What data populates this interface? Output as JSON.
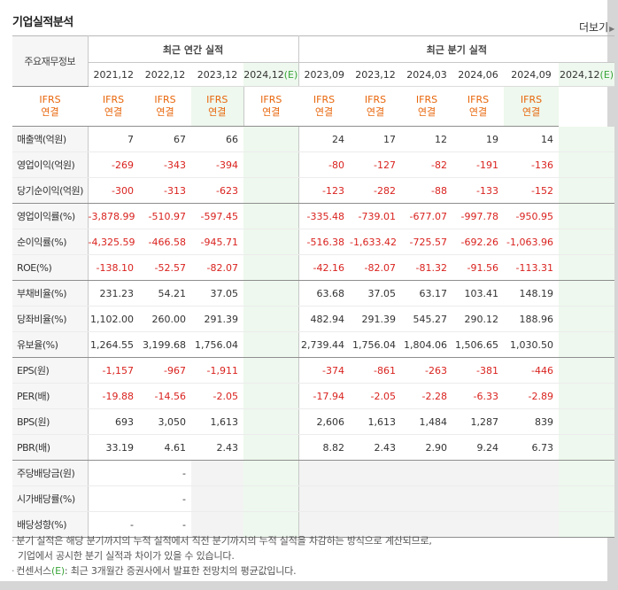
{
  "section_title": "기업실적분석",
  "more_label": "더보기",
  "header": {
    "row_label": "주요재무정보",
    "annual_group": "최근 연간 실적",
    "quarterly_group": "최근 분기 실적",
    "annual_periods": [
      "2021,12",
      "2022,12",
      "2023,12",
      "2024,12"
    ],
    "quarterly_periods": [
      "2023,09",
      "2023,12",
      "2024,03",
      "2024,06",
      "2024,09",
      "2024,12"
    ],
    "estimate_mark": "(E)",
    "basis_top": "IFRS",
    "basis_bottom": "연결"
  },
  "rows": [
    {
      "label": "매출액(억원)",
      "annual": [
        "7",
        "67",
        "66",
        ""
      ],
      "quarterly": [
        "24",
        "17",
        "12",
        "19",
        "14",
        ""
      ]
    },
    {
      "label": "영업이익(억원)",
      "annual": [
        "-269",
        "-343",
        "-394",
        ""
      ],
      "quarterly": [
        "-80",
        "-127",
        "-82",
        "-191",
        "-136",
        ""
      ]
    },
    {
      "label": "당기순이익(억원)",
      "annual": [
        "-300",
        "-313",
        "-623",
        ""
      ],
      "quarterly": [
        "-123",
        "-282",
        "-88",
        "-133",
        "-152",
        ""
      ]
    },
    {
      "label": "영업이익률(%)",
      "annual": [
        "-3,878.99",
        "-510.97",
        "-597.45",
        ""
      ],
      "quarterly": [
        "-335.48",
        "-739.01",
        "-677.07",
        "-997.78",
        "-950.95",
        ""
      ]
    },
    {
      "label": "순이익률(%)",
      "annual": [
        "-4,325.59",
        "-466.58",
        "-945.71",
        ""
      ],
      "quarterly": [
        "-516.38",
        "-1,633.42",
        "-725.57",
        "-692.26",
        "-1,063.96",
        ""
      ]
    },
    {
      "label": "ROE(%)",
      "annual": [
        "-138.10",
        "-52.57",
        "-82.07",
        ""
      ],
      "quarterly": [
        "-42.16",
        "-82.07",
        "-81.32",
        "-91.56",
        "-113.31",
        ""
      ]
    },
    {
      "label": "부채비율(%)",
      "annual": [
        "231.23",
        "54.21",
        "37.05",
        ""
      ],
      "quarterly": [
        "63.68",
        "37.05",
        "63.17",
        "103.41",
        "148.19",
        ""
      ]
    },
    {
      "label": "당좌비율(%)",
      "annual": [
        "1,102.00",
        "260.00",
        "291.39",
        ""
      ],
      "quarterly": [
        "482.94",
        "291.39",
        "545.27",
        "290.12",
        "188.96",
        ""
      ]
    },
    {
      "label": "유보율(%)",
      "annual": [
        "1,264.55",
        "3,199.68",
        "1,756.04",
        ""
      ],
      "quarterly": [
        "2,739.44",
        "1,756.04",
        "1,804.06",
        "1,506.65",
        "1,030.50",
        ""
      ]
    },
    {
      "label": "EPS(원)",
      "annual": [
        "-1,157",
        "-967",
        "-1,911",
        ""
      ],
      "quarterly": [
        "-374",
        "-861",
        "-263",
        "-381",
        "-446",
        ""
      ]
    },
    {
      "label": "PER(배)",
      "annual": [
        "-19.88",
        "-14.56",
        "-2.05",
        ""
      ],
      "quarterly": [
        "-17.94",
        "-2.05",
        "-2.28",
        "-6.33",
        "-2.89",
        ""
      ]
    },
    {
      "label": "BPS(원)",
      "annual": [
        "693",
        "3,050",
        "1,613",
        ""
      ],
      "quarterly": [
        "2,606",
        "1,613",
        "1,484",
        "1,287",
        "839",
        ""
      ]
    },
    {
      "label": "PBR(배)",
      "annual": [
        "33.19",
        "4.61",
        "2.43",
        ""
      ],
      "quarterly": [
        "8.82",
        "2.43",
        "2.90",
        "9.24",
        "6.73",
        ""
      ]
    },
    {
      "label": "주당배당금(원)",
      "annual": [
        "",
        "-",
        "",
        ""
      ],
      "quarterly": [
        "",
        "",
        "",
        "",
        "",
        ""
      ]
    },
    {
      "label": "시가배당률(%)",
      "annual": [
        "",
        "-",
        "",
        ""
      ],
      "quarterly": [
        "",
        "",
        "",
        "",
        "",
        ""
      ]
    },
    {
      "label": "배당성향(%)",
      "annual": [
        "-",
        "-",
        "",
        ""
      ],
      "quarterly": [
        "",
        "",
        "",
        "",
        "",
        ""
      ]
    }
  ],
  "notes": {
    "line1": "분기 실적은 해당 분기까지의 누적 실적에서 직전 분기까지의 누적 실적을 차감하는 방식으로 계산되므로,",
    "line2": "기업에서 공시한 분기 실적과 차이가 있을 수 있습니다.",
    "line3_pre": "컨센서스",
    "line3_mark": "(E)",
    "line3_post": ": 최근 3개월간 증권사에서 발표한 전망치의 평균값입니다."
  }
}
